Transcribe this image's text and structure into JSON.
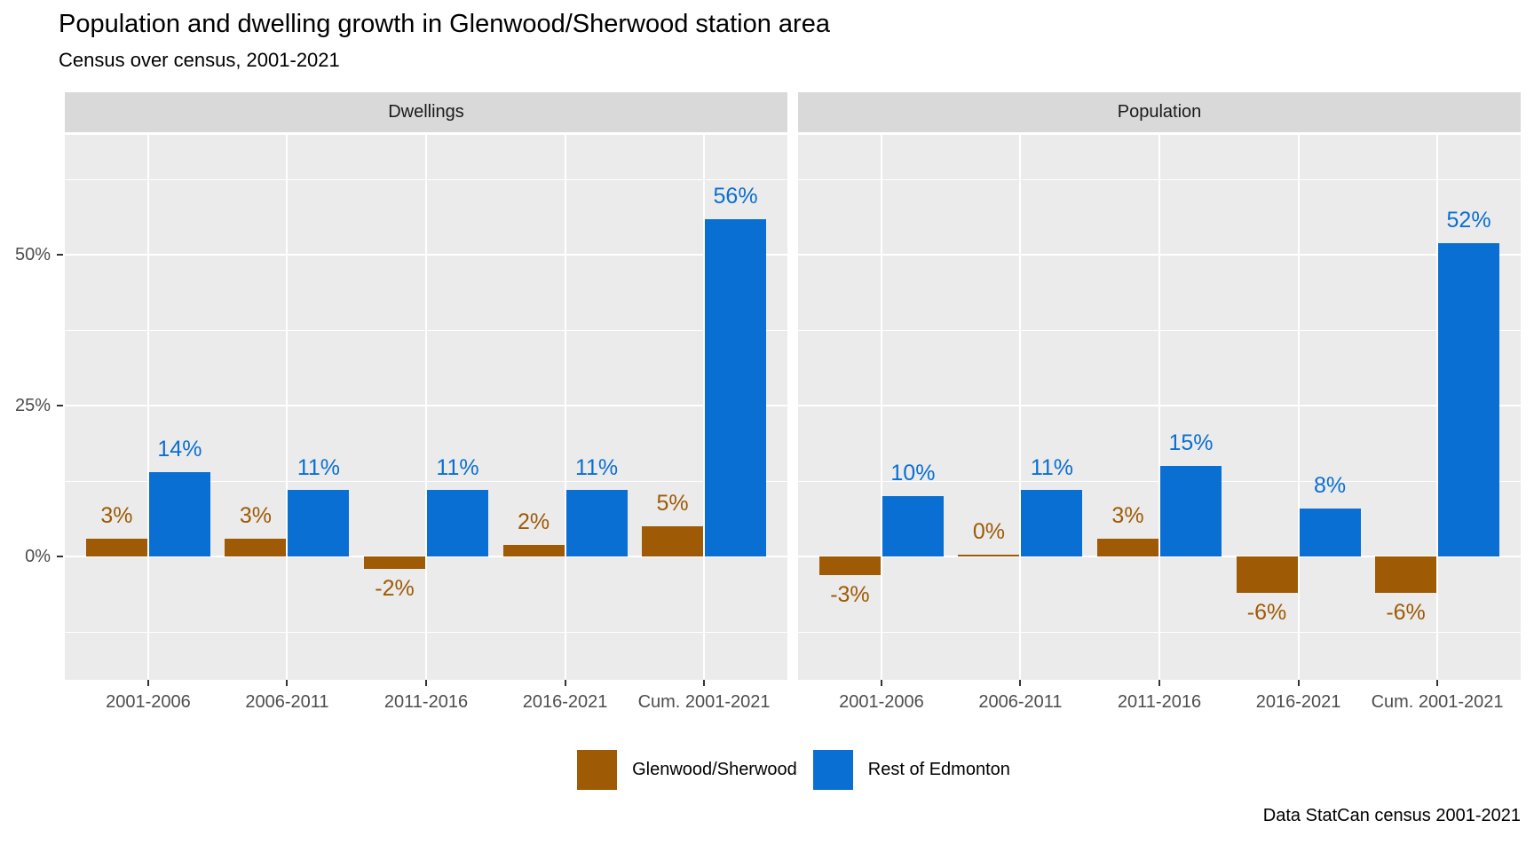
{
  "title": "Population and dwelling growth in Glenwood/Sherwood station area",
  "subtitle": "Census over census, 2001-2021",
  "caption": "Data StatCan census 2001-2021",
  "legend": {
    "items": [
      {
        "label": "Glenwood/Sherwood",
        "color": "#9E5A05"
      },
      {
        "label": "Rest of Edmonton",
        "color": "#0A6FD2"
      }
    ]
  },
  "chart_data": {
    "type": "bar",
    "title": "Population and dwelling growth in Glenwood/Sherwood station area",
    "subtitle": "Census over census, 2001-2021",
    "caption": "Data StatCan census 2001-2021",
    "xlabel": "",
    "ylabel": "",
    "categories": [
      "2001-2006",
      "2006-2011",
      "2011-2016",
      "2016-2021",
      "Cum. 2001-2021"
    ],
    "facets": [
      {
        "label": "Dwellings",
        "series": [
          {
            "name": "Glenwood/Sherwood",
            "color": "#9E5A05",
            "values": [
              3,
              3,
              -2,
              2,
              5
            ]
          },
          {
            "name": "Rest of Edmonton",
            "color": "#0A6FD2",
            "values": [
              14,
              11,
              11,
              11,
              56
            ]
          }
        ]
      },
      {
        "label": "Population",
        "series": [
          {
            "name": "Glenwood/Sherwood",
            "color": "#9E5A05",
            "values": [
              -3,
              0,
              3,
              -6,
              -6
            ]
          },
          {
            "name": "Rest of Edmonton",
            "color": "#0A6FD2",
            "values": [
              10,
              11,
              15,
              8,
              52
            ]
          }
        ]
      }
    ],
    "value_label_suffix": "%",
    "y_ticks": [
      {
        "value": 0,
        "label": "0%"
      },
      {
        "value": 25,
        "label": "25%"
      },
      {
        "value": 50,
        "label": "50%"
      }
    ],
    "grid": {
      "major": [
        0,
        25,
        50
      ],
      "minor": [
        -12.5,
        12.5,
        37.5,
        62.5
      ]
    },
    "ylim": [
      -20.4,
      69.9
    ],
    "legend_position": "bottom",
    "panel_background": "#EBEBEB",
    "strip_background": "#D9D9D9"
  }
}
